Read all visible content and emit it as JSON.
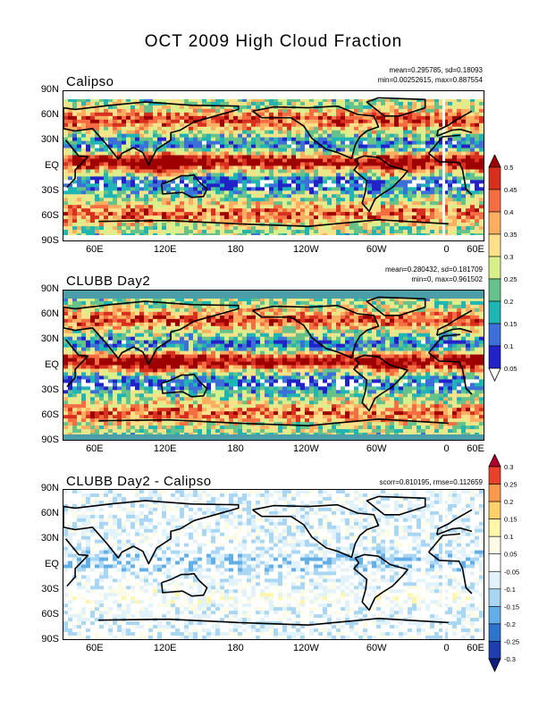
{
  "main_title": "OCT 2009 High Cloud Fraction",
  "lat_labels": [
    "90N",
    "60N",
    "30N",
    "EQ",
    "30S",
    "60S",
    "90S"
  ],
  "lon_labels": [
    "60E",
    "120E",
    "180",
    "120W",
    "60W",
    "0",
    "60E"
  ],
  "panels": [
    {
      "title": "Calipso",
      "stat_line1": "mean=0.295785, sd=0.18093",
      "stat_line2": "min=0.00252615, max=0.887554",
      "seed": 11,
      "kind": "cloud"
    },
    {
      "title": "CLUBB Day2",
      "stat_line1": "mean=0.280432, sd=0.181709",
      "stat_line2": "min=0, max=0.961502",
      "seed": 29,
      "kind": "cloud"
    },
    {
      "title": "CLUBB Day2 - Calipso",
      "stat_line1": "scorr=0.810195, rmse=0.112659",
      "stat_line2": "",
      "seed": 47,
      "kind": "diff"
    }
  ],
  "colorbar_cloud": {
    "labels": [
      "0.5",
      "0.45",
      "0.4",
      "0.35",
      "0.3",
      "0.25",
      "0.2",
      "0.15",
      "0.1",
      "0.05"
    ],
    "colors": [
      "#9e0000",
      "#d7301f",
      "#f46d43",
      "#fdae61",
      "#fee08b",
      "#d9ef8b",
      "#66c28a",
      "#1fb5b5",
      "#3c6fd8",
      "#2222c8",
      "#ffffff"
    ]
  },
  "colorbar_diff": {
    "labels": [
      "0.3",
      "0.25",
      "0.2",
      "0.15",
      "0.1",
      "0.05",
      "-0.05",
      "-0.1",
      "-0.15",
      "-0.2",
      "-0.25",
      "-0.3"
    ],
    "colors": [
      "#b2002b",
      "#e8412c",
      "#f9994d",
      "#fdd06a",
      "#fff6a8",
      "#fbfbe6",
      "#ffffff",
      "#e1f2fb",
      "#a9d6f2",
      "#63aee6",
      "#2e73cc",
      "#1f3fb0",
      "#0b1e80"
    ]
  }
}
